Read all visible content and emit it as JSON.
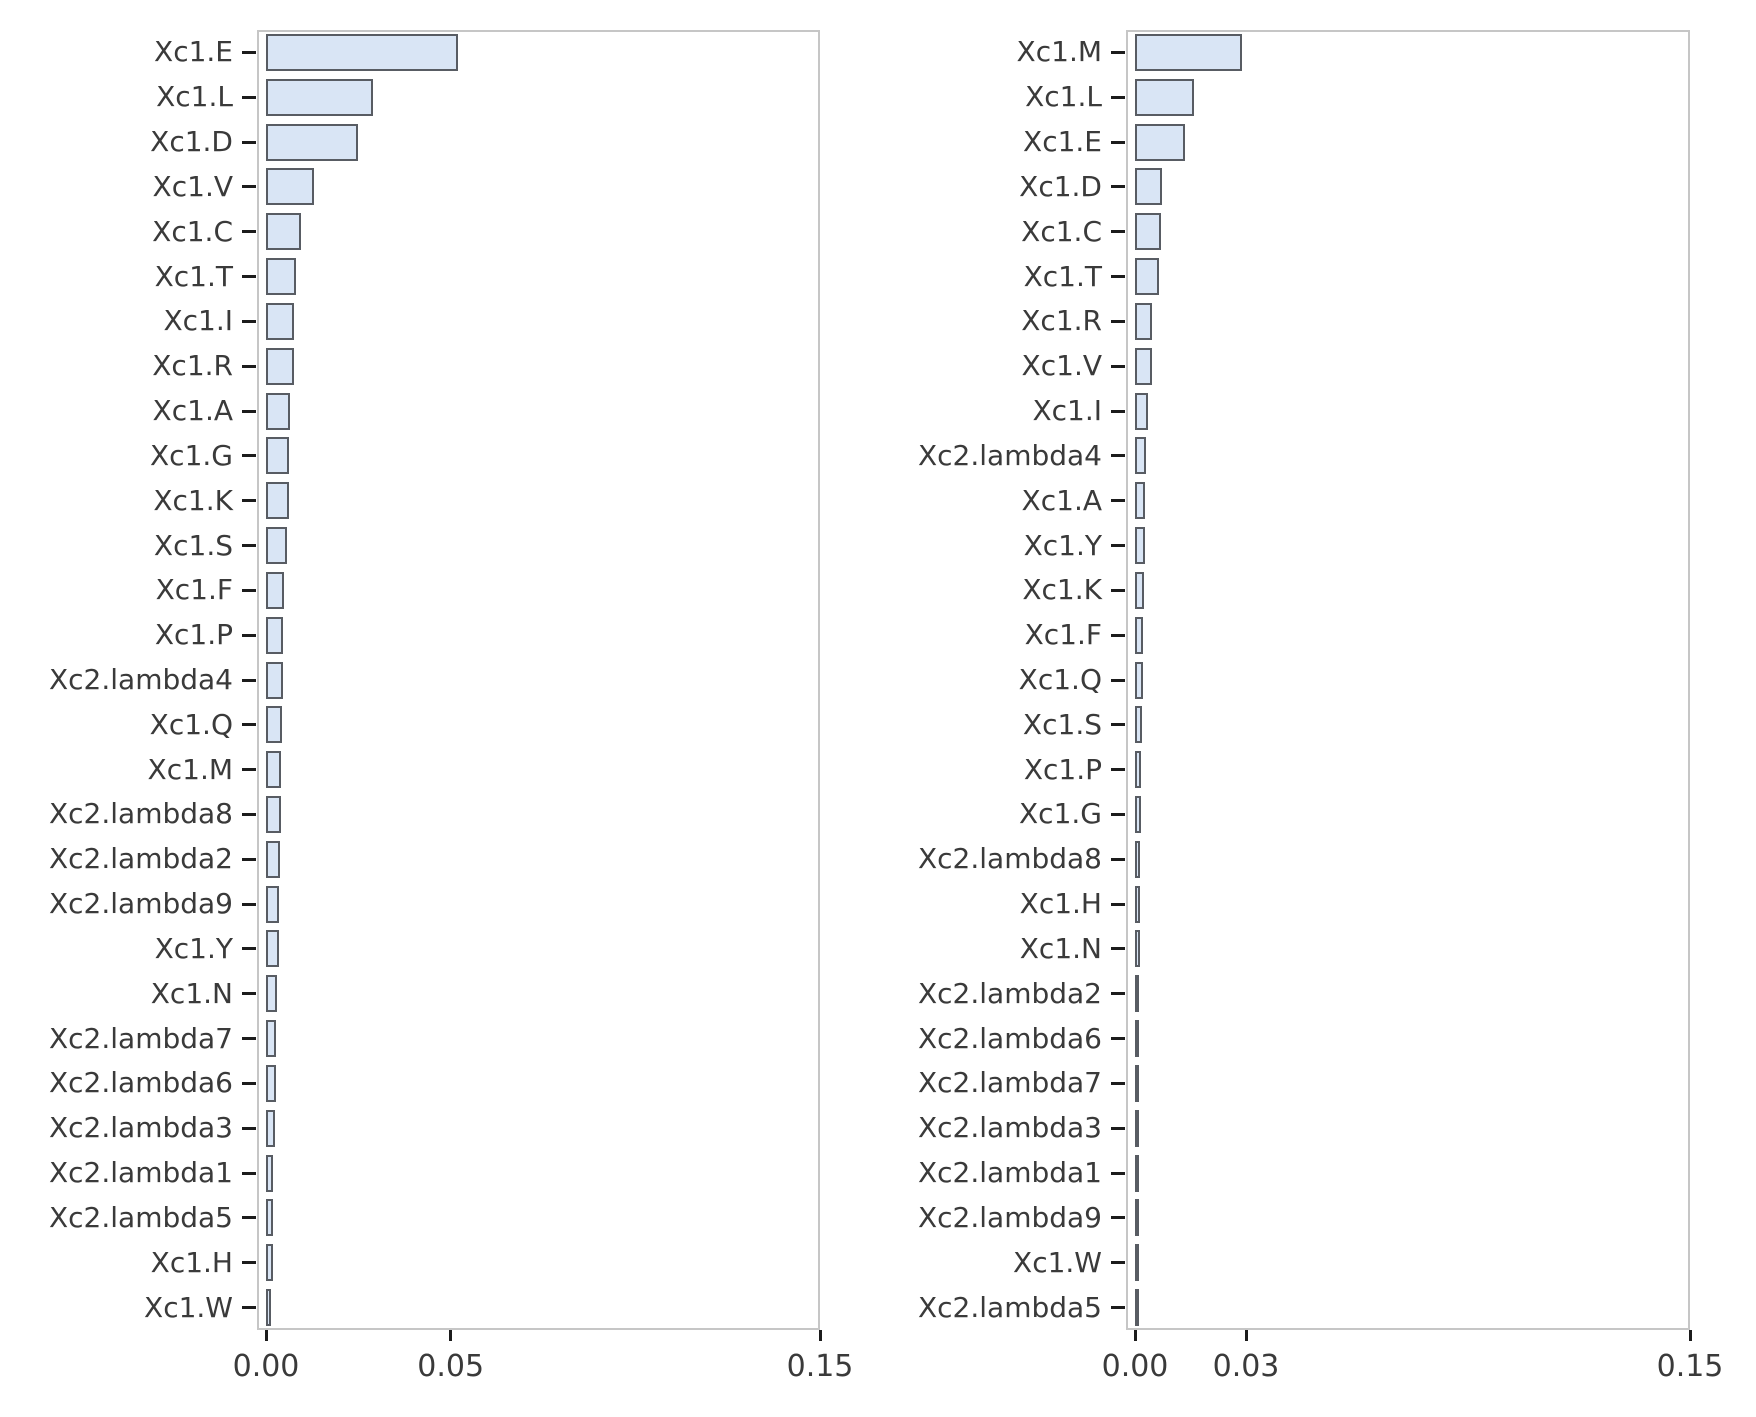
{
  "figure": {
    "background": "#ffffff",
    "colors": {
      "bar_fill": "#d9e5f5",
      "bar_border": "#585c63",
      "panel_border": "#c6c6c6",
      "text": "#3a3a3a",
      "tick": "#1c1c1c"
    }
  },
  "chart_data": [
    {
      "type": "bar",
      "orientation": "horizontal",
      "title": "",
      "xlabel": "",
      "ylabel": "",
      "grid": false,
      "legend": null,
      "xlim": [
        0,
        0.15
      ],
      "xticks": [
        0.0,
        0.05,
        0.15
      ],
      "xtick_labels": [
        "0.00",
        "0.05",
        "0.15"
      ],
      "categories": [
        "Xc1.E",
        "Xc1.L",
        "Xc1.D",
        "Xc1.V",
        "Xc1.C",
        "Xc1.T",
        "Xc1.I",
        "Xc1.R",
        "Xc1.A",
        "Xc1.G",
        "Xc1.K",
        "Xc1.S",
        "Xc1.F",
        "Xc1.P",
        "Xc2.lambda4",
        "Xc1.Q",
        "Xc1.M",
        "Xc2.lambda8",
        "Xc2.lambda2",
        "Xc2.lambda9",
        "Xc1.Y",
        "Xc1.N",
        "Xc2.lambda7",
        "Xc2.lambda6",
        "Xc2.lambda3",
        "Xc2.lambda1",
        "Xc2.lambda5",
        "Xc1.H",
        "Xc1.W"
      ],
      "values": [
        0.052,
        0.029,
        0.025,
        0.013,
        0.0095,
        0.0082,
        0.0076,
        0.0076,
        0.0064,
        0.0062,
        0.0062,
        0.0056,
        0.0049,
        0.0047,
        0.0046,
        0.0044,
        0.0041,
        0.004,
        0.0037,
        0.0036,
        0.0035,
        0.0029,
        0.0028,
        0.0026,
        0.0025,
        0.002,
        0.0019,
        0.0018,
        0.0014
      ]
    },
    {
      "type": "bar",
      "orientation": "horizontal",
      "title": "",
      "xlabel": "",
      "ylabel": "",
      "grid": false,
      "legend": null,
      "xlim": [
        0,
        0.15
      ],
      "xticks": [
        0.0,
        0.03,
        0.15
      ],
      "xtick_labels": [
        "0.00",
        "0.03",
        "0.15"
      ],
      "categories": [
        "Xc1.M",
        "Xc1.L",
        "Xc1.E",
        "Xc1.D",
        "Xc1.C",
        "Xc1.T",
        "Xc1.R",
        "Xc1.V",
        "Xc1.I",
        "Xc2.lambda4",
        "Xc1.A",
        "Xc1.Y",
        "Xc1.K",
        "Xc1.F",
        "Xc1.Q",
        "Xc1.S",
        "Xc1.P",
        "Xc1.G",
        "Xc2.lambda8",
        "Xc1.H",
        "Xc1.N",
        "Xc2.lambda2",
        "Xc2.lambda6",
        "Xc2.lambda7",
        "Xc2.lambda3",
        "Xc2.lambda1",
        "Xc2.lambda9",
        "Xc1.W",
        "Xc2.lambda5"
      ],
      "values": [
        0.029,
        0.016,
        0.0135,
        0.0074,
        0.0071,
        0.0065,
        0.0046,
        0.0045,
        0.0036,
        0.0029,
        0.0028,
        0.0026,
        0.0025,
        0.0022,
        0.0021,
        0.0018,
        0.0016,
        0.0015,
        0.0014,
        0.0013,
        0.0013,
        0.0012,
        0.0011,
        0.0011,
        0.001,
        0.0004,
        0.0004,
        0.0002,
        0.0002
      ]
    }
  ]
}
